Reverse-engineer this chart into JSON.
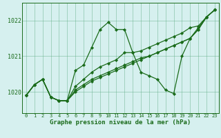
{
  "xlabel": "Graphe pression niveau de la mer (hPa)",
  "hours": [
    0,
    1,
    2,
    3,
    4,
    5,
    6,
    7,
    8,
    9,
    10,
    11,
    12,
    13,
    14,
    15,
    16,
    17,
    18,
    19,
    20,
    21,
    22,
    23
  ],
  "series": [
    [
      1019.9,
      1020.2,
      1020.35,
      1019.85,
      1019.75,
      1019.75,
      1020.6,
      1020.75,
      1021.25,
      1021.75,
      1021.95,
      1021.75,
      1021.75,
      1021.1,
      1020.55,
      1020.45,
      1020.35,
      1020.05,
      1019.95,
      1021.0,
      1021.5,
      1021.8,
      1022.1,
      1022.3
    ],
    [
      1019.9,
      1020.2,
      1020.35,
      1019.85,
      1019.75,
      1019.75,
      1020.15,
      1020.35,
      1020.55,
      1020.7,
      1020.8,
      1020.9,
      1021.1,
      1021.1,
      1021.15,
      1021.25,
      1021.35,
      1021.45,
      1021.55,
      1021.65,
      1021.8,
      1021.85,
      1022.1,
      1022.3
    ],
    [
      1019.9,
      1020.2,
      1020.35,
      1019.85,
      1019.75,
      1019.75,
      1020.05,
      1020.2,
      1020.35,
      1020.45,
      1020.55,
      1020.65,
      1020.75,
      1020.85,
      1020.95,
      1021.0,
      1021.1,
      1021.2,
      1021.3,
      1021.4,
      1021.5,
      1021.75,
      1022.1,
      1022.3
    ],
    [
      1019.9,
      1020.2,
      1020.35,
      1019.85,
      1019.75,
      1019.75,
      1020.0,
      1020.15,
      1020.3,
      1020.4,
      1020.5,
      1020.6,
      1020.7,
      1020.8,
      1020.9,
      1021.0,
      1021.1,
      1021.2,
      1021.3,
      1021.4,
      1021.5,
      1021.75,
      1022.1,
      1022.3
    ]
  ],
  "line_color": "#1a6b1a",
  "marker": "D",
  "markersize": 2.2,
  "linewidth": 0.9,
  "bg_color": "#d6f0ef",
  "grid_color": "#5aaa80",
  "axis_color": "#1a6b1a",
  "yticks": [
    1020,
    1021,
    1022
  ],
  "ylim": [
    1019.4,
    1022.5
  ],
  "xlim": [
    -0.5,
    23.5
  ],
  "xlabel_fontsize": 6.5,
  "ytick_fontsize": 6.0,
  "xtick_fontsize": 5.0
}
